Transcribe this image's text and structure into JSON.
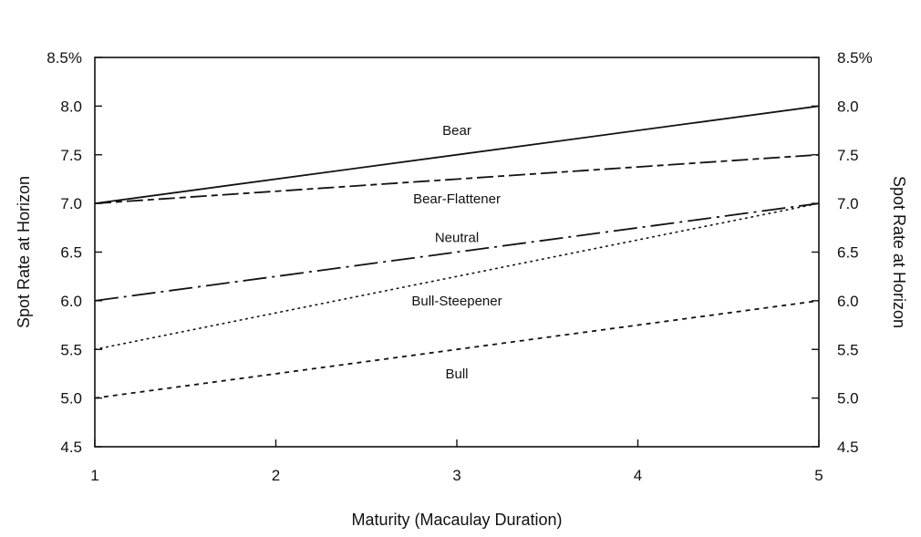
{
  "chart_data": {
    "type": "line",
    "xlabel": "Maturity (Macaulay Duration)",
    "ylabel": "Spot Rate at Horizon",
    "ylabel_right": "Spot Rate at Horizon",
    "xlim": [
      1,
      5
    ],
    "ylim": [
      4.5,
      8.5
    ],
    "x_ticks": [
      1,
      2,
      3,
      4,
      5
    ],
    "x_tick_labels": [
      "1",
      "2",
      "3",
      "4",
      "5"
    ],
    "y_ticks": [
      4.5,
      5.0,
      5.5,
      6.0,
      6.5,
      7.0,
      7.5,
      8.0,
      8.5
    ],
    "y_tick_labels": [
      "4.5",
      "5.0",
      "5.5",
      "6.0",
      "6.5",
      "7.0",
      "7.5",
      "8.0",
      "8.5%"
    ],
    "grid": false,
    "series": [
      {
        "name": "Bear",
        "style": "solid",
        "x": [
          1,
          5
        ],
        "y": [
          7.0,
          8.0
        ]
      },
      {
        "name": "Bear-Flattener",
        "style": "long-dash-short-dash",
        "x": [
          1,
          5
        ],
        "y": [
          7.0,
          7.5
        ]
      },
      {
        "name": "Neutral",
        "style": "long-dash-dot",
        "x": [
          1,
          5
        ],
        "y": [
          6.0,
          7.0
        ]
      },
      {
        "name": "Bull-Steepener",
        "style": "dotted",
        "x": [
          1,
          5
        ],
        "y": [
          5.5,
          7.0
        ]
      },
      {
        "name": "Bull",
        "style": "short-dash",
        "x": [
          1,
          5
        ],
        "y": [
          5.0,
          6.0
        ]
      }
    ],
    "annotations": [
      {
        "text": "Bear",
        "x": 3.0,
        "y": 7.75
      },
      {
        "text": "Bear-Flattener",
        "x": 3.0,
        "y": 7.05
      },
      {
        "text": "Neutral",
        "x": 3.0,
        "y": 6.65
      },
      {
        "text": "Bull-Steepener",
        "x": 3.0,
        "y": 6.0
      },
      {
        "text": "Bull",
        "x": 3.0,
        "y": 5.25
      }
    ]
  }
}
